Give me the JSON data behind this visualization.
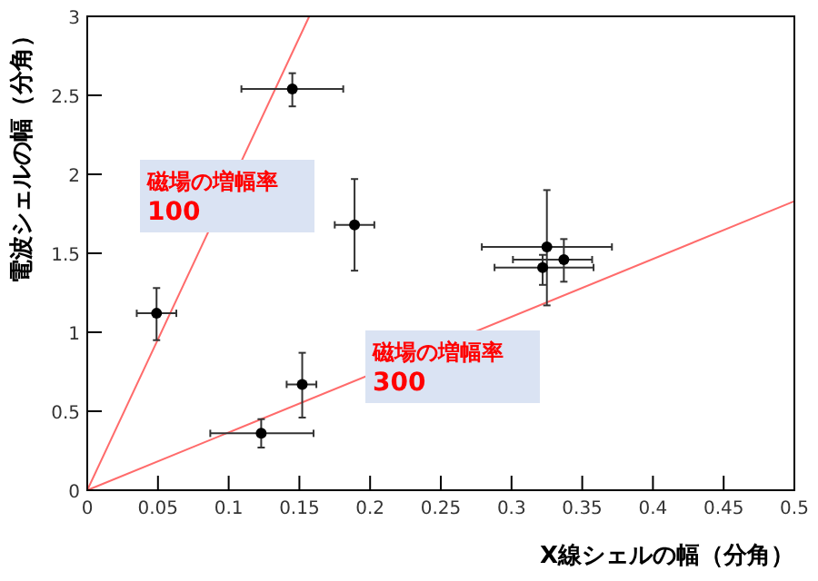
{
  "chart_data": {
    "type": "scatter",
    "xlabel": "X線シェルの幅（分角）",
    "ylabel": "電波シェルの幅（分角）",
    "xlim": [
      0,
      0.5
    ],
    "ylim": [
      0,
      3
    ],
    "xticks": [
      0,
      0.05,
      0.1,
      0.15,
      0.2,
      0.25,
      0.3,
      0.35,
      0.4,
      0.45,
      0.5
    ],
    "yticks": [
      0,
      0.5,
      1,
      1.5,
      2,
      2.5,
      3
    ],
    "grid": false,
    "marker": "circle",
    "series": [
      {
        "type": "line",
        "color": "#ff6b6b",
        "x": [
          0,
          0.157
        ],
        "values": [
          0,
          3
        ],
        "marker": "none"
      },
      {
        "type": "line",
        "color": "#ff6b6b",
        "x": [
          0,
          0.5
        ],
        "values": [
          0,
          1.83
        ],
        "marker": "none"
      },
      {
        "color": "#000000",
        "x": [
          0.049,
          0.145,
          0.189,
          0.152,
          0.123,
          0.325,
          0.322,
          0.337
        ],
        "values": [
          1.12,
          2.54,
          1.68,
          0.67,
          0.36,
          1.54,
          1.41,
          1.46
        ],
        "errors": [
          [
            0.95,
            1.28
          ],
          [
            2.43,
            2.64
          ],
          [
            1.39,
            1.97
          ],
          [
            0.46,
            0.87
          ],
          [
            0.27,
            0.45
          ],
          [
            1.17,
            1.9
          ],
          [
            1.3,
            1.49
          ],
          [
            1.32,
            1.59
          ]
        ],
        "xerrors": [
          [
            0.035,
            0.063
          ],
          [
            0.109,
            0.181
          ],
          [
            0.175,
            0.203
          ],
          [
            0.141,
            0.162
          ],
          [
            0.087,
            0.16
          ],
          [
            0.279,
            0.371
          ],
          [
            0.288,
            0.358
          ],
          [
            0.301,
            0.357
          ]
        ]
      }
    ],
    "annotations": [
      "磁場の増幅率\n100",
      "磁場の増幅率\n300"
    ]
  }
}
